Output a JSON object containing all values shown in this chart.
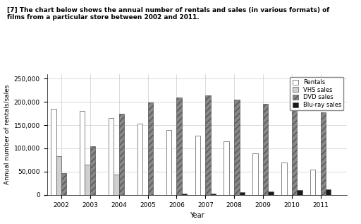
{
  "years": [
    2002,
    2003,
    2004,
    2005,
    2006,
    2007,
    2008,
    2009,
    2010,
    2011
  ],
  "rentals": [
    185000,
    180000,
    165000,
    153000,
    140000,
    128000,
    115000,
    90000,
    70000,
    55000
  ],
  "vhs_sales": [
    83000,
    65000,
    43000,
    0,
    0,
    0,
    0,
    0,
    0,
    0
  ],
  "dvd_sales": [
    47000,
    104000,
    175000,
    198000,
    210000,
    214000,
    205000,
    195000,
    185000,
    178000
  ],
  "bluray_sales": [
    0,
    0,
    0,
    0,
    2000,
    3000,
    6000,
    7000,
    10000,
    12000
  ],
  "xlabel": "Year",
  "ylabel": "Annual number of rentals/sales",
  "ylim": [
    0,
    260000
  ],
  "yticks": [
    0,
    50000,
    100000,
    150000,
    200000,
    250000
  ],
  "ytick_labels": [
    "0",
    "50,000",
    "100,000",
    "150,000",
    "200,000",
    "250,000"
  ],
  "colors": {
    "rentals": "#ffffff",
    "vhs_sales": "#d0d0d0",
    "dvd_sales": "#888888",
    "bluray_sales": "#1a1a1a"
  },
  "edgecolor": "#555555",
  "legend_labels": [
    "Rentals",
    "VHS sales",
    "DVD sales",
    "Blu-ray sales"
  ],
  "bar_width": 0.18,
  "header_text": "[7] The chart below shows the annual number of rentals and sales (in various formats) of\nfilms from a particular store between 2002 and 2011.",
  "figsize": [
    5.12,
    3.17
  ],
  "dpi": 100
}
